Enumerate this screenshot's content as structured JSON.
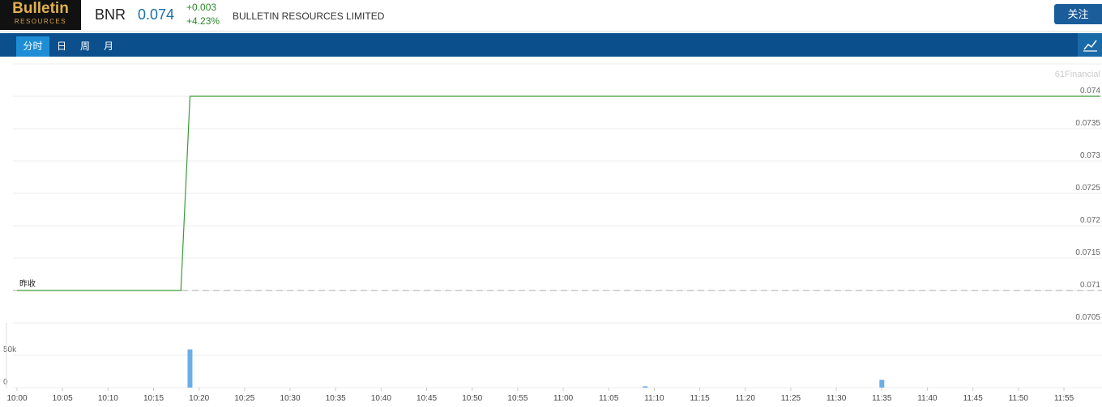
{
  "header": {
    "logo_line1": "Bulletin",
    "logo_line2": "RESOURCES",
    "symbol": "BNR",
    "price": 0.074,
    "change": "+0.003",
    "change_pct": "+4.23%",
    "company": "BULLETIN RESOURCES LIMITED",
    "follow_button": "关注"
  },
  "tabs": [
    "分时",
    "日",
    "周",
    "月"
  ],
  "watermark": "61Financial",
  "chart_data": [
    {
      "type": "line",
      "x": [
        "10:00",
        "10:18",
        "10:19",
        "11:59"
      ],
      "values": [
        0.071,
        0.071,
        0.074,
        0.074
      ],
      "color": "#3a9a3a",
      "ylim": [
        0.0705,
        0.0745
      ],
      "yticks": [
        0.0705,
        0.071,
        0.0715,
        0.072,
        0.0725,
        0.073,
        0.0735,
        0.074
      ],
      "grid": true,
      "reference_line": {
        "label": "昨收",
        "value": 0.071
      }
    },
    {
      "type": "bar",
      "x": [
        "10:19",
        "11:09",
        "11:35"
      ],
      "values": [
        59000,
        2000,
        12000
      ],
      "color": "#6aaee8",
      "ylim": [
        0,
        100000
      ],
      "yticks": [
        0,
        {
          "value": 50000,
          "label": "50k"
        }
      ],
      "grid": true,
      "xticks": [
        "10:00",
        "10:05",
        "10:10",
        "10:15",
        "10:20",
        "10:25",
        "10:30",
        "10:35",
        "10:40",
        "10:45",
        "10:50",
        "10:55",
        "11:00",
        "11:05",
        "11:10",
        "11:15",
        "11:20",
        "11:25",
        "11:30",
        "11:35",
        "11:40",
        "11:45",
        "11:50",
        "11:55"
      ]
    }
  ]
}
